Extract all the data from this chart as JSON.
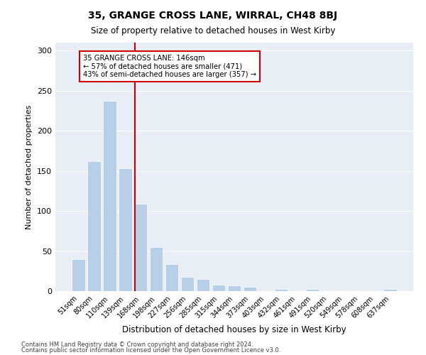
{
  "title": "35, GRANGE CROSS LANE, WIRRAL, CH48 8BJ",
  "subtitle": "Size of property relative to detached houses in West Kirby",
  "xlabel": "Distribution of detached houses by size in West Kirby",
  "ylabel": "Number of detached properties",
  "categories": [
    "51sqm",
    "80sqm",
    "110sqm",
    "139sqm",
    "168sqm",
    "198sqm",
    "227sqm",
    "256sqm",
    "285sqm",
    "315sqm",
    "344sqm",
    "373sqm",
    "403sqm",
    "432sqm",
    "461sqm",
    "491sqm",
    "520sqm",
    "549sqm",
    "578sqm",
    "608sqm",
    "637sqm"
  ],
  "values": [
    40,
    162,
    237,
    153,
    109,
    55,
    34,
    18,
    15,
    8,
    7,
    5,
    0,
    3,
    0,
    3,
    0,
    0,
    0,
    0,
    3
  ],
  "bar_color": "#b8cfe8",
  "vline_x": 3.62,
  "vline_color": "#cc0000",
  "annotation_text": "35 GRANGE CROSS LANE: 146sqm\n← 57% of detached houses are smaller (471)\n43% of semi-detached houses are larger (357) →",
  "annotation_box_color": "#ffffff",
  "annotation_box_edge_color": "#cc0000",
  "ylim": [
    0,
    310
  ],
  "yticks": [
    0,
    50,
    100,
    150,
    200,
    250,
    300
  ],
  "background_color": "#e8eef5",
  "footer_line1": "Contains HM Land Registry data © Crown copyright and database right 2024.",
  "footer_line2": "Contains public sector information licensed under the Open Government Licence v3.0."
}
